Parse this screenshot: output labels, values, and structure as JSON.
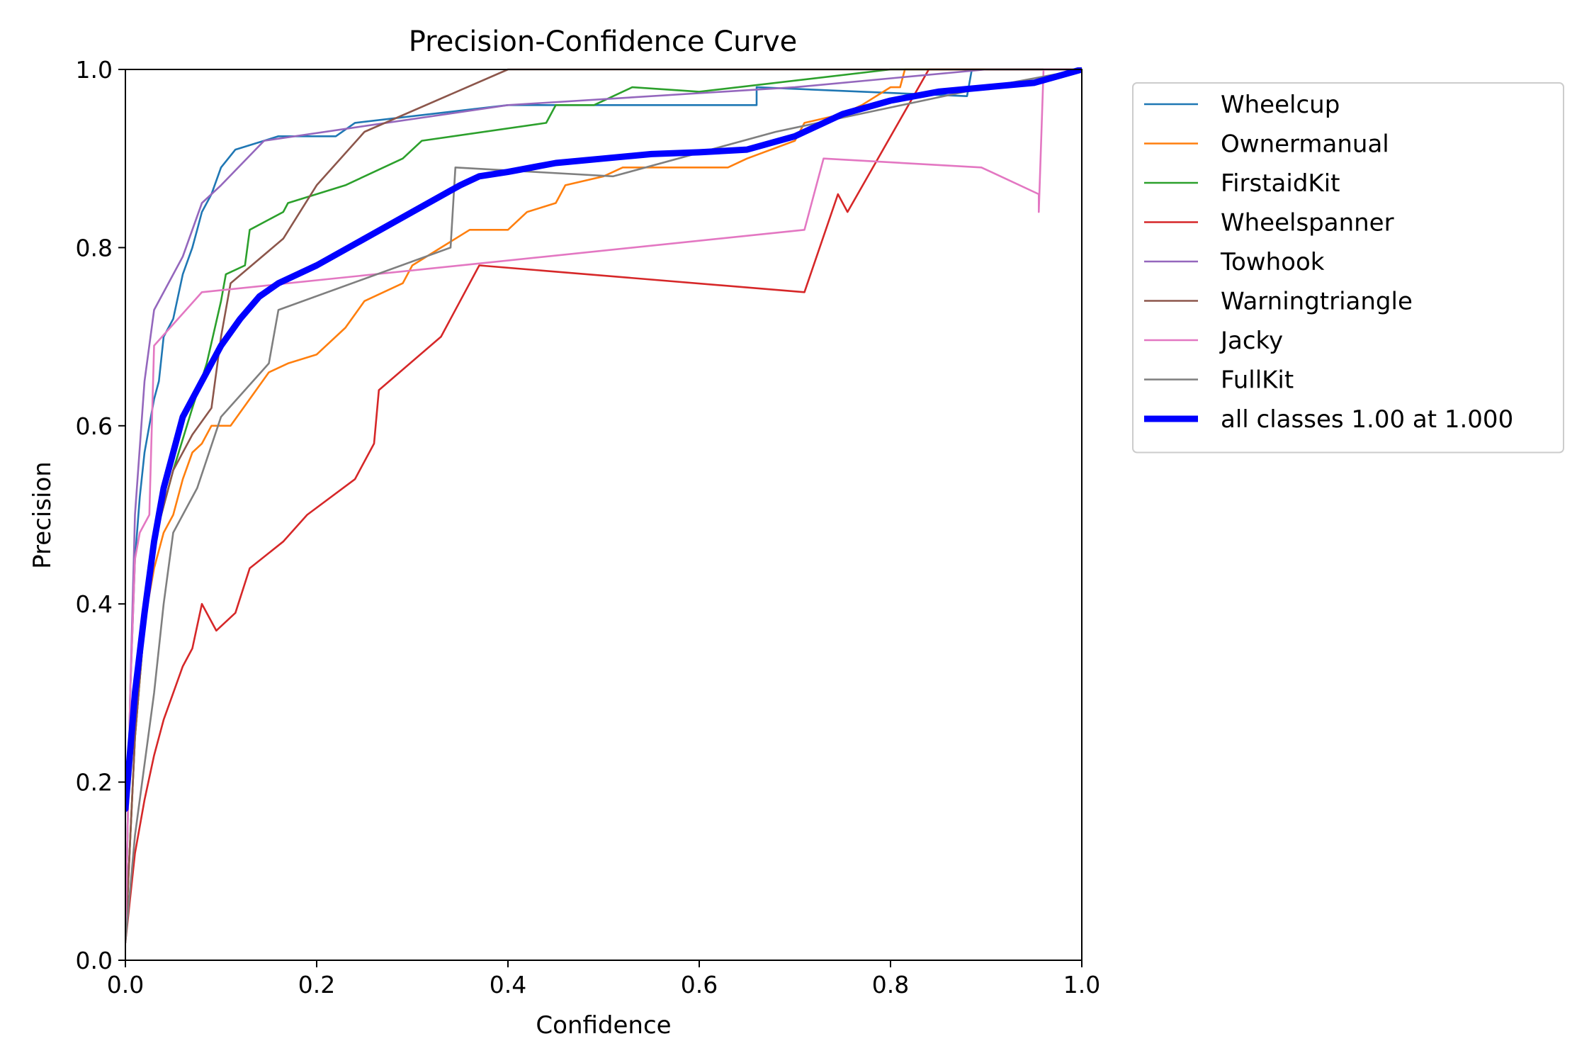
{
  "chart_data": {
    "type": "line",
    "title": "Precision-Confidence Curve",
    "xlabel": "Confidence",
    "ylabel": "Precision",
    "xlim": [
      0,
      1
    ],
    "ylim": [
      0,
      1
    ],
    "x_ticks": [
      "0.0",
      "0.2",
      "0.4",
      "0.6",
      "0.8",
      "1.0"
    ],
    "y_ticks": [
      "0.0",
      "0.2",
      "0.4",
      "0.6",
      "0.8",
      "1.0"
    ],
    "grid": false,
    "legend_position": "outside-right-top",
    "series": [
      {
        "name": "Wheelcup",
        "color": "#1f77b4",
        "points": [
          [
            0.0,
            0.02
          ],
          [
            0.005,
            0.3
          ],
          [
            0.01,
            0.45
          ],
          [
            0.015,
            0.52
          ],
          [
            0.02,
            0.57
          ],
          [
            0.03,
            0.63
          ],
          [
            0.035,
            0.65
          ],
          [
            0.04,
            0.7
          ],
          [
            0.05,
            0.72
          ],
          [
            0.06,
            0.77
          ],
          [
            0.07,
            0.8
          ],
          [
            0.075,
            0.82
          ],
          [
            0.08,
            0.84
          ],
          [
            0.09,
            0.86
          ],
          [
            0.1,
            0.89
          ],
          [
            0.115,
            0.91
          ],
          [
            0.16,
            0.925
          ],
          [
            0.22,
            0.925
          ],
          [
            0.24,
            0.94
          ],
          [
            0.4,
            0.96
          ],
          [
            0.66,
            0.96
          ],
          [
            0.66,
            0.98
          ],
          [
            0.88,
            0.97
          ],
          [
            0.885,
            1.0
          ],
          [
            1.0,
            1.0
          ]
        ]
      },
      {
        "name": "Ownermanual",
        "color": "#ff7f0e",
        "points": [
          [
            0.0,
            0.02
          ],
          [
            0.01,
            0.25
          ],
          [
            0.02,
            0.38
          ],
          [
            0.03,
            0.44
          ],
          [
            0.04,
            0.48
          ],
          [
            0.05,
            0.5
          ],
          [
            0.06,
            0.54
          ],
          [
            0.07,
            0.57
          ],
          [
            0.08,
            0.58
          ],
          [
            0.09,
            0.6
          ],
          [
            0.11,
            0.6
          ],
          [
            0.13,
            0.63
          ],
          [
            0.15,
            0.66
          ],
          [
            0.17,
            0.67
          ],
          [
            0.2,
            0.68
          ],
          [
            0.23,
            0.71
          ],
          [
            0.25,
            0.74
          ],
          [
            0.29,
            0.76
          ],
          [
            0.3,
            0.78
          ],
          [
            0.33,
            0.8
          ],
          [
            0.36,
            0.82
          ],
          [
            0.4,
            0.82
          ],
          [
            0.42,
            0.84
          ],
          [
            0.45,
            0.85
          ],
          [
            0.46,
            0.87
          ],
          [
            0.5,
            0.88
          ],
          [
            0.52,
            0.89
          ],
          [
            0.6,
            0.89
          ],
          [
            0.63,
            0.89
          ],
          [
            0.65,
            0.9
          ],
          [
            0.7,
            0.92
          ],
          [
            0.71,
            0.94
          ],
          [
            0.75,
            0.95
          ],
          [
            0.77,
            0.96
          ],
          [
            0.8,
            0.98
          ],
          [
            0.81,
            0.98
          ],
          [
            0.815,
            1.0
          ],
          [
            1.0,
            1.0
          ]
        ]
      },
      {
        "name": "FirstaidKit",
        "color": "#2ca02c",
        "points": [
          [
            0.0,
            0.02
          ],
          [
            0.01,
            0.25
          ],
          [
            0.02,
            0.38
          ],
          [
            0.03,
            0.47
          ],
          [
            0.05,
            0.55
          ],
          [
            0.07,
            0.62
          ],
          [
            0.085,
            0.67
          ],
          [
            0.1,
            0.74
          ],
          [
            0.105,
            0.77
          ],
          [
            0.125,
            0.78
          ],
          [
            0.13,
            0.82
          ],
          [
            0.165,
            0.84
          ],
          [
            0.17,
            0.85
          ],
          [
            0.23,
            0.87
          ],
          [
            0.29,
            0.9
          ],
          [
            0.31,
            0.92
          ],
          [
            0.44,
            0.94
          ],
          [
            0.45,
            0.96
          ],
          [
            0.49,
            0.96
          ],
          [
            0.53,
            0.98
          ],
          [
            0.6,
            0.975
          ],
          [
            0.8,
            1.0
          ],
          [
            1.0,
            1.0
          ]
        ]
      },
      {
        "name": "Wheelspanner",
        "color": "#d62728",
        "points": [
          [
            0.0,
            0.02
          ],
          [
            0.01,
            0.12
          ],
          [
            0.02,
            0.18
          ],
          [
            0.03,
            0.23
          ],
          [
            0.04,
            0.27
          ],
          [
            0.05,
            0.3
          ],
          [
            0.06,
            0.33
          ],
          [
            0.07,
            0.35
          ],
          [
            0.08,
            0.4
          ],
          [
            0.095,
            0.37
          ],
          [
            0.115,
            0.39
          ],
          [
            0.13,
            0.44
          ],
          [
            0.165,
            0.47
          ],
          [
            0.19,
            0.5
          ],
          [
            0.24,
            0.54
          ],
          [
            0.26,
            0.58
          ],
          [
            0.265,
            0.64
          ],
          [
            0.33,
            0.7
          ],
          [
            0.37,
            0.78
          ],
          [
            0.71,
            0.75
          ],
          [
            0.745,
            0.86
          ],
          [
            0.755,
            0.84
          ],
          [
            0.84,
            1.0
          ],
          [
            1.0,
            1.0
          ]
        ]
      },
      {
        "name": "Towhook",
        "color": "#9467bd",
        "points": [
          [
            0.0,
            0.02
          ],
          [
            0.005,
            0.3
          ],
          [
            0.01,
            0.5
          ],
          [
            0.02,
            0.65
          ],
          [
            0.03,
            0.73
          ],
          [
            0.06,
            0.79
          ],
          [
            0.08,
            0.85
          ],
          [
            0.1,
            0.87
          ],
          [
            0.145,
            0.92
          ],
          [
            0.4,
            0.96
          ],
          [
            0.7,
            0.98
          ],
          [
            0.9,
            1.0
          ],
          [
            1.0,
            1.0
          ]
        ]
      },
      {
        "name": "Warningtriangle",
        "color": "#8c564b",
        "points": [
          [
            0.0,
            0.02
          ],
          [
            0.01,
            0.25
          ],
          [
            0.02,
            0.38
          ],
          [
            0.03,
            0.47
          ],
          [
            0.05,
            0.55
          ],
          [
            0.07,
            0.59
          ],
          [
            0.09,
            0.62
          ],
          [
            0.1,
            0.7
          ],
          [
            0.11,
            0.76
          ],
          [
            0.165,
            0.81
          ],
          [
            0.2,
            0.87
          ],
          [
            0.25,
            0.93
          ],
          [
            0.4,
            1.0
          ],
          [
            1.0,
            1.0
          ]
        ]
      },
      {
        "name": "Jacky",
        "color": "#e377c2",
        "points": [
          [
            0.0,
            0.02
          ],
          [
            0.005,
            0.3
          ],
          [
            0.01,
            0.45
          ],
          [
            0.015,
            0.48
          ],
          [
            0.025,
            0.5
          ],
          [
            0.03,
            0.69
          ],
          [
            0.08,
            0.75
          ],
          [
            0.71,
            0.82
          ],
          [
            0.73,
            0.9
          ],
          [
            0.895,
            0.89
          ],
          [
            0.915,
            0.88
          ],
          [
            0.955,
            0.86
          ],
          [
            0.955,
            0.84
          ],
          [
            0.96,
            1.0
          ],
          [
            1.0,
            1.0
          ]
        ]
      },
      {
        "name": "FullKit",
        "color": "#7f7f7f",
        "points": [
          [
            0.0,
            0.02
          ],
          [
            0.01,
            0.14
          ],
          [
            0.02,
            0.22
          ],
          [
            0.03,
            0.3
          ],
          [
            0.04,
            0.4
          ],
          [
            0.05,
            0.48
          ],
          [
            0.06,
            0.5
          ],
          [
            0.075,
            0.53
          ],
          [
            0.1,
            0.61
          ],
          [
            0.15,
            0.67
          ],
          [
            0.16,
            0.73
          ],
          [
            0.34,
            0.8
          ],
          [
            0.345,
            0.89
          ],
          [
            0.51,
            0.88
          ],
          [
            0.68,
            0.93
          ],
          [
            0.9,
            0.98
          ],
          [
            1.0,
            1.0
          ]
        ]
      },
      {
        "name": "all classes 1.00 at 1.000",
        "color": "#0000ff",
        "bold": true,
        "points": [
          [
            0.0,
            0.17
          ],
          [
            0.01,
            0.3
          ],
          [
            0.02,
            0.39
          ],
          [
            0.03,
            0.47
          ],
          [
            0.04,
            0.53
          ],
          [
            0.05,
            0.57
          ],
          [
            0.06,
            0.61
          ],
          [
            0.08,
            0.65
          ],
          [
            0.1,
            0.69
          ],
          [
            0.12,
            0.72
          ],
          [
            0.14,
            0.745
          ],
          [
            0.16,
            0.76
          ],
          [
            0.2,
            0.78
          ],
          [
            0.25,
            0.81
          ],
          [
            0.3,
            0.84
          ],
          [
            0.35,
            0.87
          ],
          [
            0.37,
            0.88
          ],
          [
            0.4,
            0.885
          ],
          [
            0.45,
            0.895
          ],
          [
            0.5,
            0.9
          ],
          [
            0.55,
            0.905
          ],
          [
            0.6,
            0.907
          ],
          [
            0.65,
            0.91
          ],
          [
            0.7,
            0.925
          ],
          [
            0.75,
            0.95
          ],
          [
            0.8,
            0.965
          ],
          [
            0.85,
            0.975
          ],
          [
            0.9,
            0.98
          ],
          [
            0.95,
            0.985
          ],
          [
            1.0,
            1.0
          ]
        ]
      }
    ]
  }
}
